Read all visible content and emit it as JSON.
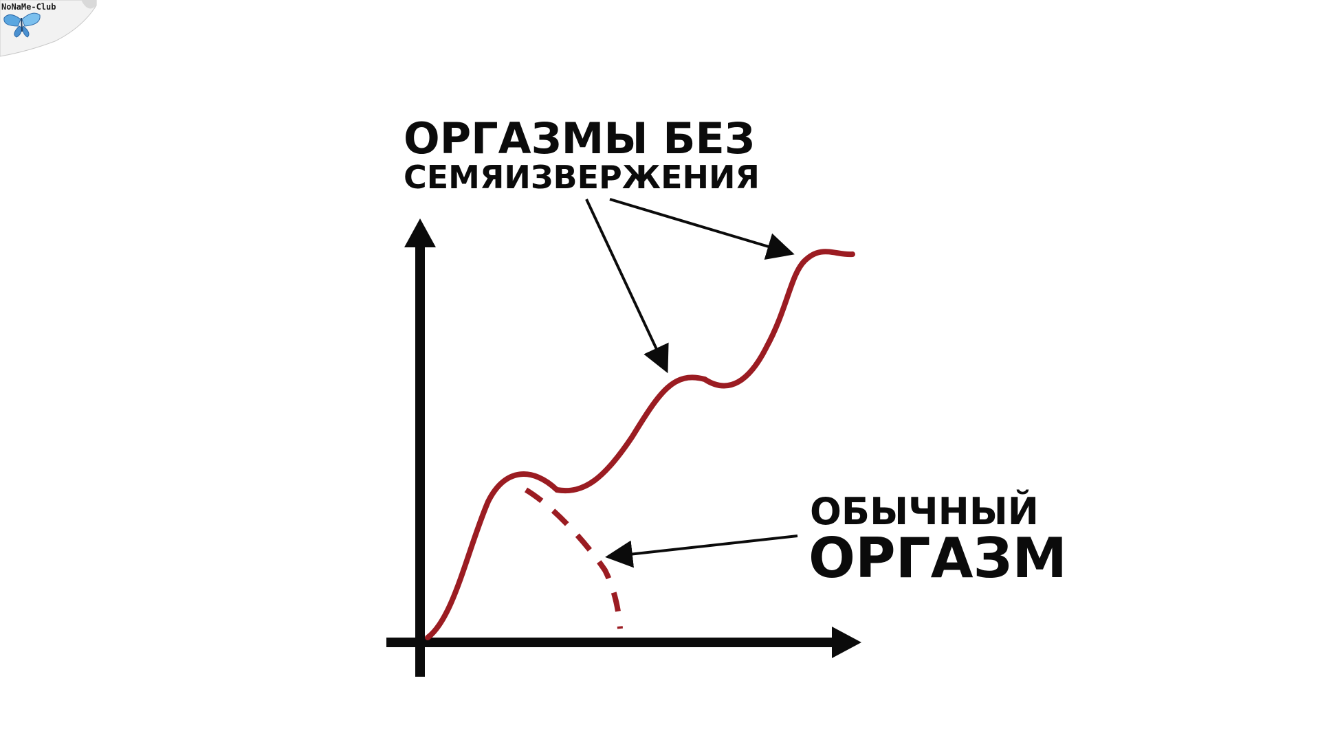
{
  "watermark": {
    "text": "NoNaMe-Club"
  },
  "labels": {
    "no_ejaculation_line1": "ОРГАЗМЫ БЕЗ",
    "no_ejaculation_line2": "СЕМЯИЗВЕРЖЕНИЯ",
    "normal_line1": "ОБЫЧНЫЙ",
    "normal_line2": "ОРГАЗМ"
  },
  "colors": {
    "curve": "#9b1c22",
    "axes": "#0b0b0b",
    "background": "#ffffff",
    "butterfly": "#5aa6e0"
  }
}
